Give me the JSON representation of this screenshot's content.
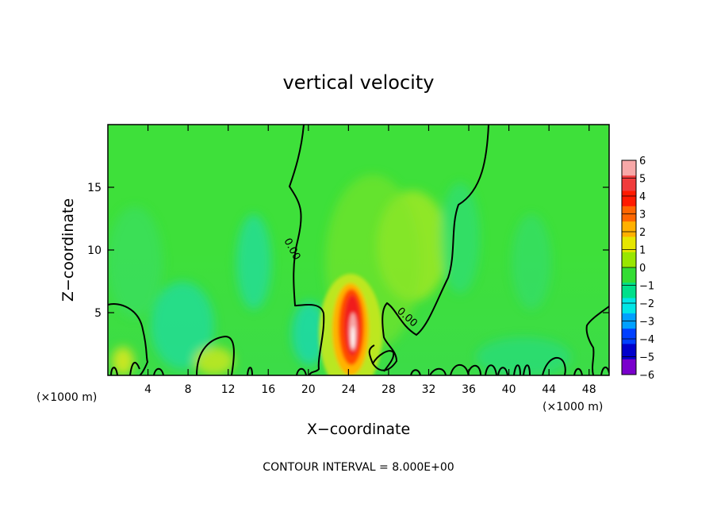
{
  "chart_data": {
    "type": "heatmap",
    "title": "vertical velocity",
    "xlabel": "X−coordinate",
    "ylabel": "Z−coordinate",
    "xlim": [
      0,
      50
    ],
    "ylim": [
      0,
      20
    ],
    "x_ticks": [
      4,
      8,
      12,
      16,
      20,
      24,
      28,
      32,
      36,
      40,
      44,
      48
    ],
    "y_ticks": [
      5,
      10,
      15
    ],
    "x_unit_left": "(×1000 m)",
    "x_unit_right": "(×1000 m)",
    "footer": "CONTOUR INTERVAL = 8.000E+00",
    "contour_label": "0.00",
    "colorbar": {
      "min": -6,
      "max": 6,
      "tick_labels": [
        "6",
        "5",
        "4",
        "3",
        "2",
        "1",
        "0",
        "−1",
        "−2",
        "−3",
        "−4",
        "−5",
        "−6"
      ],
      "tick_values": [
        6,
        5,
        4,
        3,
        2,
        1,
        0,
        -1,
        -2,
        -3,
        -4,
        -5,
        -6
      ],
      "colors": [
        "#f7a8a8",
        "#f03c3c",
        "#ff1a00",
        "#ff6600",
        "#ffb000",
        "#e6e600",
        "#99e600",
        "#33dd33",
        "#00e08a",
        "#00e6e6",
        "#00a0ff",
        "#0040ff",
        "#0000cc",
        "#7a00cc"
      ]
    },
    "field_features": [
      {
        "kind": "updraft",
        "x": 24.5,
        "z": 3.5,
        "w": 5.8
      },
      {
        "kind": "weak-updraft",
        "x": 30.5,
        "z": 10.5,
        "w": 1.5
      },
      {
        "kind": "downdraft",
        "x": 8,
        "z": 4.5,
        "w": -1.2
      },
      {
        "kind": "downdraft",
        "x": 14.5,
        "z": 8,
        "w": -1.0
      },
      {
        "kind": "downdraft",
        "x": 20,
        "z": 3,
        "w": -1.3
      }
    ]
  }
}
